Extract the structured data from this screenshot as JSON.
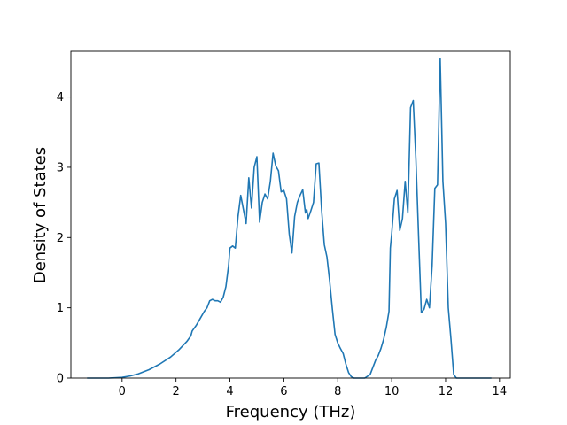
{
  "chart_data": {
    "type": "line",
    "title": "",
    "xlabel": "Frequency (THz)",
    "ylabel": "Density of States",
    "xlim": [
      -1.9,
      14.4
    ],
    "ylim": [
      0,
      4.65
    ],
    "xticks": [
      0,
      2,
      4,
      6,
      8,
      10,
      12,
      14
    ],
    "yticks": [
      0,
      1,
      2,
      3,
      4
    ],
    "grid": false,
    "line_color": "#1f77b4",
    "series": [
      {
        "x": [
          -1.3,
          -0.5,
          0.0,
          0.3,
          0.6,
          1.0,
          1.4,
          1.8,
          2.1,
          2.4,
          2.55,
          2.6,
          2.75,
          2.9,
          3.05,
          3.15,
          3.25,
          3.35,
          3.45,
          3.55,
          3.65,
          3.75,
          3.85,
          3.95,
          4.0,
          4.1,
          4.2,
          4.3,
          4.4,
          4.5,
          4.6,
          4.7,
          4.8,
          4.9,
          5.0,
          5.1,
          5.2,
          5.3,
          5.4,
          5.5,
          5.6,
          5.7,
          5.8,
          5.9,
          6.0,
          6.1,
          6.2,
          6.3,
          6.4,
          6.5,
          6.6,
          6.7,
          6.8,
          6.85,
          6.9,
          7.0,
          7.1,
          7.2,
          7.3,
          7.4,
          7.5,
          7.6,
          7.7,
          7.8,
          7.9,
          8.0,
          8.1,
          8.2,
          8.3,
          8.4,
          8.5,
          8.6,
          8.8,
          9.0,
          9.2,
          9.4,
          9.5,
          9.6,
          9.7,
          9.8,
          9.9,
          9.95,
          10.0,
          10.1,
          10.2,
          10.3,
          10.4,
          10.5,
          10.6,
          10.7,
          10.8,
          10.9,
          11.0,
          11.1,
          11.2,
          11.3,
          11.4,
          11.5,
          11.6,
          11.7,
          11.8,
          11.9,
          12.0,
          12.1,
          12.2,
          12.3,
          12.4,
          12.5,
          12.7,
          13.0,
          13.7
        ],
        "y": [
          0.0,
          0.0,
          0.01,
          0.03,
          0.06,
          0.12,
          0.2,
          0.3,
          0.4,
          0.52,
          0.6,
          0.67,
          0.75,
          0.85,
          0.95,
          1.0,
          1.1,
          1.12,
          1.1,
          1.1,
          1.08,
          1.15,
          1.3,
          1.6,
          1.85,
          1.88,
          1.85,
          2.3,
          2.6,
          2.4,
          2.2,
          2.85,
          2.42,
          3.0,
          3.15,
          2.22,
          2.5,
          2.62,
          2.55,
          2.8,
          3.2,
          3.02,
          2.95,
          2.65,
          2.67,
          2.55,
          2.05,
          1.78,
          2.3,
          2.5,
          2.6,
          2.68,
          2.35,
          2.4,
          2.27,
          2.38,
          2.5,
          3.05,
          3.06,
          2.4,
          1.9,
          1.72,
          1.38,
          0.98,
          0.62,
          0.5,
          0.42,
          0.35,
          0.2,
          0.08,
          0.02,
          0.0,
          0.0,
          0.0,
          0.05,
          0.25,
          0.32,
          0.42,
          0.55,
          0.72,
          0.95,
          1.85,
          2.05,
          2.55,
          2.67,
          2.1,
          2.27,
          2.8,
          2.35,
          3.85,
          3.95,
          3.1,
          2.0,
          0.93,
          0.98,
          1.12,
          1.0,
          1.6,
          2.7,
          2.75,
          4.55,
          2.8,
          2.2,
          1.0,
          0.55,
          0.05,
          0.0,
          0.0,
          0.0,
          0.0,
          0.0
        ]
      }
    ]
  }
}
